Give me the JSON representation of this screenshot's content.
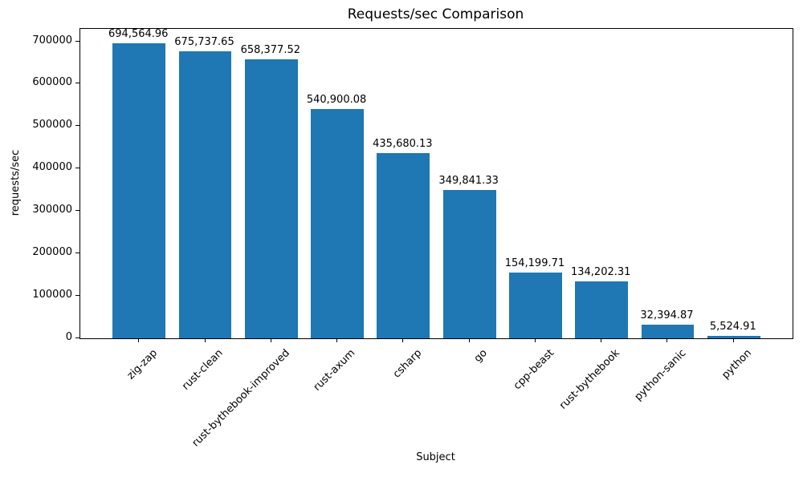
{
  "chart_data": {
    "type": "bar",
    "title": "Requests/sec Comparison",
    "xlabel": "Subject",
    "ylabel": "requests/sec",
    "categories": [
      "zig-zap",
      "rust-clean",
      "rust-bythebook-improved",
      "rust-axum",
      "csharp",
      "go",
      "cpp-beast",
      "rust-bythebook",
      "python-sanic",
      "python"
    ],
    "values": [
      694564.96,
      675737.65,
      658377.52,
      540900.08,
      435680.13,
      349841.33,
      154199.71,
      134202.31,
      32394.87,
      5524.91
    ],
    "value_labels": [
      "694,564.96",
      "675,737.65",
      "658,377.52",
      "540,900.08",
      "435,680.13",
      "349,841.33",
      "154,199.71",
      "134,202.31",
      "32,394.87",
      "5,524.91"
    ],
    "yticks": [
      0,
      100000,
      200000,
      300000,
      400000,
      500000,
      600000,
      700000
    ],
    "ylim": [
      0,
      729293
    ],
    "bar_color": "#1f77b4",
    "text_color": "#000000",
    "grid": false,
    "legend": null,
    "xtick_rotation": 45
  }
}
